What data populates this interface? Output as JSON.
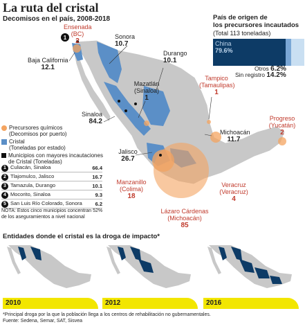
{
  "header": {
    "title": "La ruta del cristal",
    "subtitle": "Decomisos en el país, 2008-2018"
  },
  "map_labels": {
    "ensenada": {
      "name": "Ensenada",
      "sub": "(BC)",
      "value": "2"
    },
    "sonora": {
      "name": "Sonora",
      "value": "10.7"
    },
    "baja_california": {
      "name": "Baja California",
      "value": "12.1"
    },
    "durango": {
      "name": "Durango",
      "value": "10.1"
    },
    "mazatlan": {
      "name": "Mazatlán",
      "sub": "(Sinaloa)",
      "value": "1"
    },
    "tampico": {
      "name": "Tampico",
      "sub": "(Tamaulipas)",
      "value": "1"
    },
    "sinaloa": {
      "name": "Sinaloa",
      "value": "84.2"
    },
    "progreso": {
      "name": "Progreso",
      "sub": "(Yucatán)",
      "value": "2"
    },
    "michoacan": {
      "name": "Michoacán",
      "value": "11.7"
    },
    "jalisco": {
      "name": "Jalisco",
      "value": "26.7"
    },
    "manzanillo": {
      "name": "Manzanillo",
      "sub": "(Colima)",
      "value": "18"
    },
    "veracruz": {
      "name": "Veracruz",
      "sub": "(Veracruz)",
      "value": "4"
    },
    "lazaro": {
      "name": "Lázaro Cárdenas",
      "sub": "(Michoacán)",
      "value": "85"
    }
  },
  "precursors": {
    "title_line1": "País de origen de",
    "title_line2": "los precursores incautados",
    "total": "(Total 113 toneladas)",
    "china_label": "China",
    "china_value": "79.6%",
    "otros_label": "Otros",
    "otros_value": "6.2%",
    "sin_label": "Sin registro",
    "sin_value": "14.2%",
    "shares": {
      "china": 79.6,
      "otros": 6.2,
      "sin_registro": 14.2
    },
    "colors": {
      "china": "#0d3b66",
      "otros": "#7aa7d6",
      "sin_registro": "#c9dff2"
    }
  },
  "legend": {
    "precursor_label": "Precursores químicos",
    "precursor_sub": "(Decomisos por puerto)",
    "cristal_label": "Cristal",
    "cristal_sub": "(Toneladas por estado)",
    "muni_label": "Municipios con mayores incautaciones",
    "muni_sub": "de Cristal (Toneladas)",
    "colors": {
      "precursor": "#f4a460",
      "cristal": "#5b8fc7",
      "muni": "#111111"
    }
  },
  "municipios": [
    {
      "rank": "1",
      "name": "Culiacán, Sinaloa",
      "value": "66.4"
    },
    {
      "rank": "2",
      "name": "Tlajomulco, Jalisco",
      "value": "16.7"
    },
    {
      "rank": "3",
      "name": "Tamazula, Durango",
      "value": "10.1"
    },
    {
      "rank": "4",
      "name": "Mocorito, Sinaloa",
      "value": "9.3"
    },
    {
      "rank": "5",
      "name": "San Luis Río Colorado, Sonora",
      "value": "6.2"
    }
  ],
  "note": "NOTA: Estos cinco municipios concentran 52% de los aseguramientos a nivel nacional",
  "impact": {
    "title": "Entidades donde el cristal es la droga de impacto*",
    "years": [
      "2010",
      "2012",
      "2016"
    ],
    "colors": {
      "impact": "#0d3b66",
      "base": "#c8c8c8",
      "bar": "#f2e600"
    }
  },
  "footnote": {
    "line1": "*Principal droga por la que la población llega a los centros de rehabilitación no gubernamentales.",
    "line2": "Fuente: Sedena, Semar, SAT, Sisvea"
  }
}
